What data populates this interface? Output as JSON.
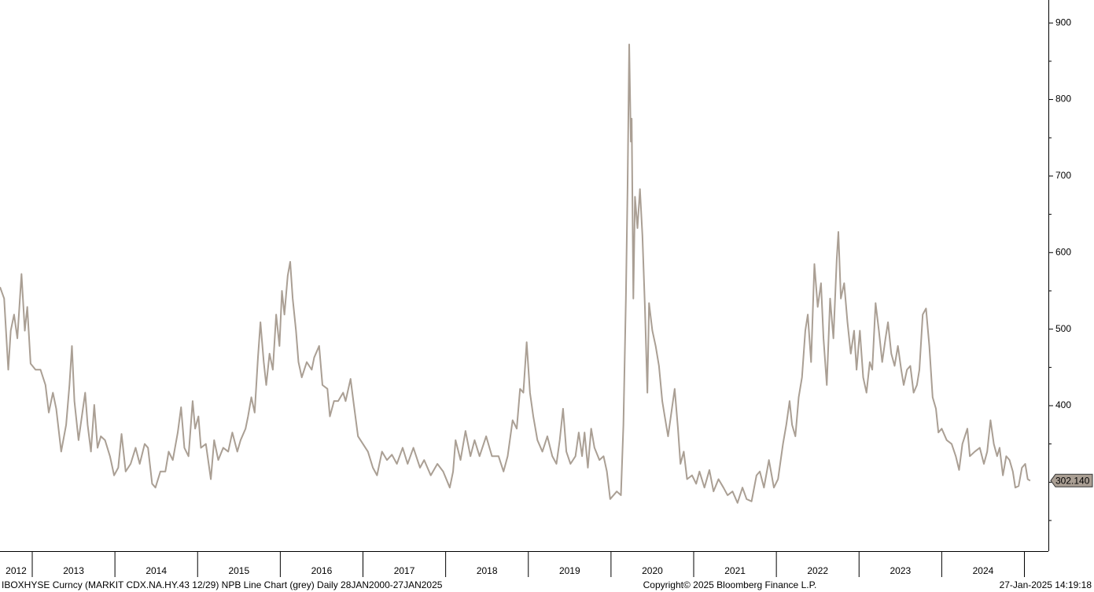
{
  "chart_data": {
    "type": "line",
    "footer_left": "IBOXHYSE Curncy (MARKIT CDX.NA.HY.43 12/29) NPB Line Chart (grey)  Daily 28JAN2000-27JAN2025",
    "footer_center": "Copyright© 2025 Bloomberg Finance L.P.",
    "footer_right": "27-Jan-2025 14:19:18",
    "color": "#aa9f94",
    "x": [
      2012.61,
      2012.66,
      2012.71,
      2012.74,
      2012.78,
      2012.82,
      2012.87,
      2012.91,
      2012.94,
      2012.98,
      2013.04,
      2013.1,
      2013.16,
      2013.2,
      2013.25,
      2013.29,
      2013.35,
      2013.41,
      2013.45,
      2013.48,
      2013.51,
      2013.56,
      2013.6,
      2013.64,
      2013.67,
      2013.71,
      2013.75,
      2013.79,
      2013.83,
      2013.88,
      2013.94,
      2013.99,
      2014.04,
      2014.08,
      2014.13,
      2014.19,
      2014.25,
      2014.3,
      2014.36,
      2014.4,
      2014.45,
      2014.49,
      2014.55,
      2014.61,
      2014.65,
      2014.7,
      2014.76,
      2014.8,
      2014.84,
      2014.89,
      2014.94,
      2014.97,
      2015.01,
      2015.04,
      2015.1,
      2015.16,
      2015.2,
      2015.25,
      2015.31,
      2015.37,
      2015.42,
      2015.48,
      2015.52,
      2015.58,
      2015.61,
      2015.65,
      2015.69,
      2015.73,
      2015.76,
      2015.8,
      2015.83,
      2015.87,
      2015.91,
      2015.95,
      2015.99,
      2016.02,
      2016.05,
      2016.09,
      2016.12,
      2016.15,
      2016.19,
      2016.22,
      2016.26,
      2016.32,
      2016.38,
      2016.41,
      2016.47,
      2016.51,
      2016.57,
      2016.6,
      2016.65,
      2016.7,
      2016.76,
      2016.79,
      2016.85,
      2016.89,
      2016.94,
      2017.0,
      2017.06,
      2017.12,
      2017.17,
      2017.23,
      2017.29,
      2017.35,
      2017.41,
      2017.48,
      2017.54,
      2017.61,
      2017.69,
      2017.74,
      2017.82,
      2017.9,
      2017.97,
      2018.05,
      2018.09,
      2018.12,
      2018.18,
      2018.24,
      2018.3,
      2018.35,
      2018.41,
      2018.49,
      2018.56,
      2018.64,
      2018.7,
      2018.75,
      2018.81,
      2018.86,
      2018.9,
      2018.94,
      2018.98,
      2019.02,
      2019.06,
      2019.11,
      2019.17,
      2019.23,
      2019.29,
      2019.34,
      2019.38,
      2019.42,
      2019.46,
      2019.51,
      2019.57,
      2019.61,
      2019.65,
      2019.68,
      2019.72,
      2019.76,
      2019.8,
      2019.86,
      2019.91,
      2019.95,
      2019.99,
      2020.03,
      2020.07,
      2020.12,
      2020.15,
      2020.18,
      2020.2,
      2020.22,
      2020.24,
      2020.25,
      2020.27,
      2020.29,
      2020.32,
      2020.35,
      2020.38,
      2020.41,
      2020.44,
      2020.46,
      2020.5,
      2020.54,
      2020.58,
      2020.62,
      2020.65,
      2020.69,
      2020.73,
      2020.77,
      2020.81,
      2020.84,
      2020.88,
      2020.92,
      2020.98,
      2021.03,
      2021.07,
      2021.13,
      2021.19,
      2021.24,
      2021.3,
      2021.36,
      2021.41,
      2021.47,
      2021.53,
      2021.59,
      2021.64,
      2021.7,
      2021.76,
      2021.8,
      2021.85,
      2021.91,
      2021.97,
      2022.02,
      2022.08,
      2022.12,
      2022.16,
      2022.19,
      2022.23,
      2022.27,
      2022.31,
      2022.35,
      2022.38,
      2022.42,
      2022.46,
      2022.5,
      2022.54,
      2022.57,
      2022.61,
      2022.65,
      2022.69,
      2022.73,
      2022.75,
      2022.78,
      2022.82,
      2022.86,
      2022.9,
      2022.94,
      2022.97,
      2023.01,
      2023.05,
      2023.09,
      2023.13,
      2023.16,
      2023.2,
      2023.24,
      2023.28,
      2023.32,
      2023.35,
      2023.39,
      2023.43,
      2023.47,
      2023.51,
      2023.54,
      2023.58,
      2023.62,
      2023.66,
      2023.7,
      2023.73,
      2023.77,
      2023.81,
      2023.85,
      2023.89,
      2023.93,
      2023.96,
      2024.0,
      2024.06,
      2024.12,
      2024.17,
      2024.21,
      2024.25,
      2024.31,
      2024.34,
      2024.4,
      2024.46,
      2024.51,
      2024.55,
      2024.59,
      2024.63,
      2024.67,
      2024.7,
      2024.74,
      2024.78,
      2024.82,
      2024.86,
      2024.89,
      2024.93,
      2024.97,
      2025.01,
      2025.04,
      2025.07
    ],
    "values": [
      555,
      540,
      447,
      498,
      519,
      488,
      572,
      498,
      529,
      455,
      447,
      447,
      427,
      391,
      417,
      396,
      340,
      375,
      427,
      478,
      406,
      355,
      386,
      417,
      375,
      340,
      401,
      345,
      360,
      355,
      334,
      309,
      319,
      363,
      314,
      324,
      345,
      324,
      350,
      345,
      298,
      293,
      314,
      314,
      340,
      329,
      365,
      398,
      345,
      334,
      406,
      370,
      386,
      345,
      350,
      304,
      355,
      329,
      345,
      340,
      365,
      340,
      355,
      370,
      386,
      411,
      391,
      463,
      509,
      457,
      427,
      468,
      447,
      519,
      478,
      550,
      519,
      570,
      588,
      540,
      498,
      457,
      437,
      457,
      447,
      463,
      478,
      427,
      422,
      386,
      406,
      406,
      417,
      406,
      435,
      401,
      360,
      350,
      340,
      319,
      309,
      340,
      329,
      336,
      324,
      345,
      324,
      345,
      319,
      329,
      309,
      324,
      314,
      293,
      314,
      355,
      329,
      367,
      334,
      355,
      334,
      360,
      334,
      334,
      314,
      334,
      381,
      370,
      422,
      417,
      483,
      417,
      386,
      355,
      340,
      360,
      334,
      324,
      355,
      396,
      340,
      324,
      334,
      365,
      334,
      365,
      319,
      370,
      345,
      329,
      334,
      314,
      278,
      283,
      288,
      283,
      375,
      540,
      683,
      872,
      745,
      775,
      540,
      673,
      632,
      683,
      622,
      529,
      417,
      534,
      498,
      478,
      452,
      406,
      386,
      360,
      391,
      422,
      370,
      324,
      340,
      304,
      309,
      298,
      314,
      293,
      316,
      288,
      304,
      293,
      283,
      288,
      273,
      293,
      278,
      275,
      309,
      314,
      293,
      329,
      293,
      304,
      350,
      375,
      406,
      375,
      360,
      411,
      437,
      498,
      519,
      457,
      585,
      529,
      560,
      488,
      427,
      540,
      488,
      591,
      627,
      540,
      560,
      509,
      468,
      498,
      447,
      498,
      437,
      417,
      457,
      447,
      534,
      498,
      457,
      488,
      509,
      468,
      452,
      478,
      447,
      427,
      447,
      452,
      417,
      427,
      447,
      519,
      527,
      478,
      411,
      396,
      365,
      370,
      355,
      350,
      334,
      316,
      350,
      370,
      334,
      340,
      345,
      324,
      340,
      381,
      350,
      334,
      345,
      309,
      334,
      329,
      314,
      293,
      295,
      319,
      324,
      304,
      302
    ],
    "last_value": {
      "value": 302.14,
      "label": "302.140"
    },
    "xlim": [
      2012.61,
      2025.29
    ],
    "xticks": [
      2013,
      2014,
      2015,
      2016,
      2017,
      2018,
      2019,
      2020,
      2021,
      2022,
      2023,
      2024,
      2025
    ],
    "year_labels": [
      {
        "value": 2012,
        "label": "2012"
      },
      {
        "value": 2013,
        "label": "2013"
      },
      {
        "value": 2014,
        "label": "2014"
      },
      {
        "value": 2015,
        "label": "2015"
      },
      {
        "value": 2016,
        "label": "2016"
      },
      {
        "value": 2017,
        "label": "2017"
      },
      {
        "value": 2018,
        "label": "2018"
      },
      {
        "value": 2019,
        "label": "2019"
      },
      {
        "value": 2020,
        "label": "2020"
      },
      {
        "value": 2021,
        "label": "2021"
      },
      {
        "value": 2022,
        "label": "2022"
      },
      {
        "value": 2023,
        "label": "2023"
      },
      {
        "value": 2024,
        "label": "2024"
      }
    ],
    "ylim": [
      210,
      930
    ],
    "yticks": [
      400,
      500,
      600,
      700,
      800,
      900
    ],
    "yticks_minor": [
      250,
      300,
      350,
      450,
      550,
      650,
      750,
      850
    ]
  }
}
